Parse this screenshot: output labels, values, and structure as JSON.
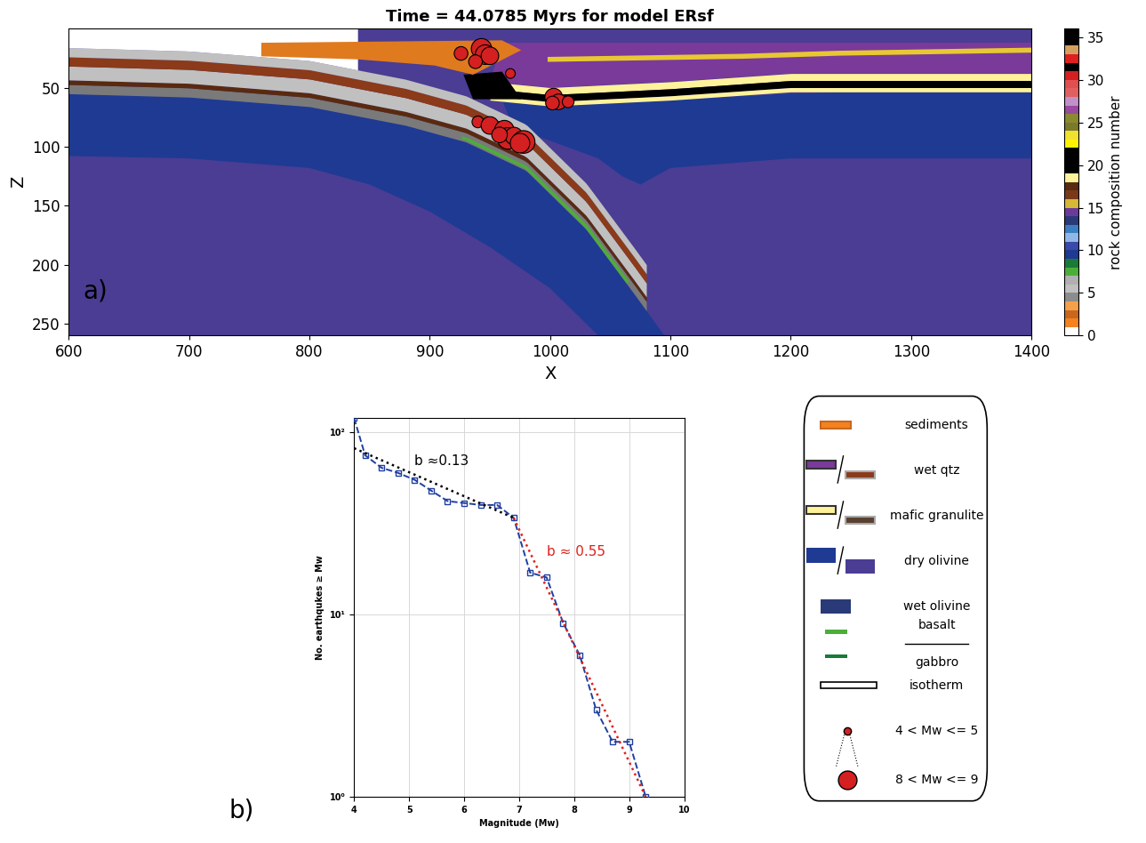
{
  "chart_data": [
    {
      "type": "section",
      "title": "Time = 44.0785 Myrs for model ERsf",
      "panel_label": "a)",
      "x_label": "X",
      "y_label": "Z",
      "xlim": [
        600,
        1400
      ],
      "ylim": [
        260,
        0
      ],
      "xticks": [
        600,
        700,
        800,
        900,
        1000,
        1100,
        1200,
        1300,
        1400
      ],
      "yticks": [
        50,
        100,
        150,
        200,
        250
      ],
      "colorbar_label": "rock composition number",
      "colorbar_range": [
        0,
        36
      ],
      "colorbar_ticks": [
        0,
        5,
        10,
        15,
        20,
        25,
        30,
        35
      ],
      "earthquakes": {
        "x": [
          926,
          943,
          946,
          950,
          938,
          967,
          1003,
          1007,
          1015,
          1002,
          940,
          950,
          962,
          965,
          970,
          978,
          975,
          958
        ],
        "z": [
          21,
          17,
          22,
          23,
          28,
          38,
          58,
          62,
          62,
          63,
          79,
          82,
          86,
          93,
          91,
          96,
          97,
          90
        ],
        "magnitude": [
          6.5,
          8.2,
          8.0,
          7.5,
          6.5,
          5.5,
          7.5,
          7.0,
          6.0,
          6.5,
          6.0,
          7.5,
          8.0,
          8.5,
          7.5,
          8.8,
          8.0,
          7.0
        ],
        "color": "#d42020"
      }
    },
    {
      "type": "line",
      "panel_label": "b)",
      "x_label": "Magnitude (Mw)",
      "y_label": "No. earthqukes ≥ Mw",
      "log": "y",
      "grid": true,
      "xlim": [
        4,
        10
      ],
      "ylim": [
        1,
        120
      ],
      "xticks": [
        4,
        5,
        6,
        7,
        8,
        9,
        10
      ],
      "yticks": [
        {
          "value": 1,
          "label": "10⁰"
        },
        {
          "value": 10,
          "label": "10¹"
        },
        {
          "value": 100,
          "label": "10²"
        }
      ],
      "series": [
        {
          "x": [
            4.0,
            4.2,
            4.5,
            4.8,
            5.1,
            5.4,
            5.7,
            6.0,
            6.3,
            6.6,
            6.9,
            7.2,
            7.5,
            7.8,
            8.1,
            8.4,
            8.7,
            9.0,
            9.3
          ],
          "values": [
            120,
            75,
            64,
            60,
            55,
            48,
            42,
            41,
            40,
            40,
            34,
            17,
            16,
            9,
            6,
            3,
            2,
            2,
            1
          ],
          "color": "#1f3fa0",
          "marker": "s",
          "line_style": "dashed"
        },
        {
          "x": [
            4.0,
            6.9
          ],
          "values": [
            82,
            34
          ],
          "color": "#000000",
          "line_style": "dotted"
        },
        {
          "x": [
            6.9,
            9.3
          ],
          "values": [
            34,
            1
          ],
          "color": "#e0201b",
          "line_style": "dotted"
        }
      ],
      "annotations": [
        {
          "text": "b ≈0.13",
          "x": 5.1,
          "y": 66,
          "color": "#000000"
        },
        {
          "text": "b ≈ 0.55",
          "x": 7.5,
          "y": 21,
          "color": "#e0201b"
        }
      ]
    }
  ],
  "legend_panel": {
    "items": [
      {
        "label": "sediments",
        "colors": [
          "#f5821f",
          "#c8681e"
        ]
      },
      {
        "label": "wet qtz",
        "colors": [
          "#7a3a9a",
          "#8b3a1a"
        ]
      },
      {
        "label": "mafic granulite",
        "colors": [
          "#fff29a",
          "#5a4030"
        ]
      },
      {
        "label": "dry olivine",
        "colors": [
          "#1f3a93",
          "#4a3d93"
        ]
      },
      {
        "label": "wet olivine",
        "colors": [
          "#2a3a78"
        ]
      },
      {
        "label": "basalt",
        "colors": [
          "#4cae3a"
        ]
      },
      {
        "label": "gabbro",
        "colors": [
          "#1a7a3a"
        ]
      },
      {
        "label": "isotherm",
        "colors": [
          "#ffffff"
        ]
      },
      {
        "label": "4 < Mw <= 5",
        "colors": [
          "#d42020"
        ]
      },
      {
        "label": "8 < Mw <= 9",
        "colors": [
          "#d42020"
        ]
      }
    ]
  }
}
